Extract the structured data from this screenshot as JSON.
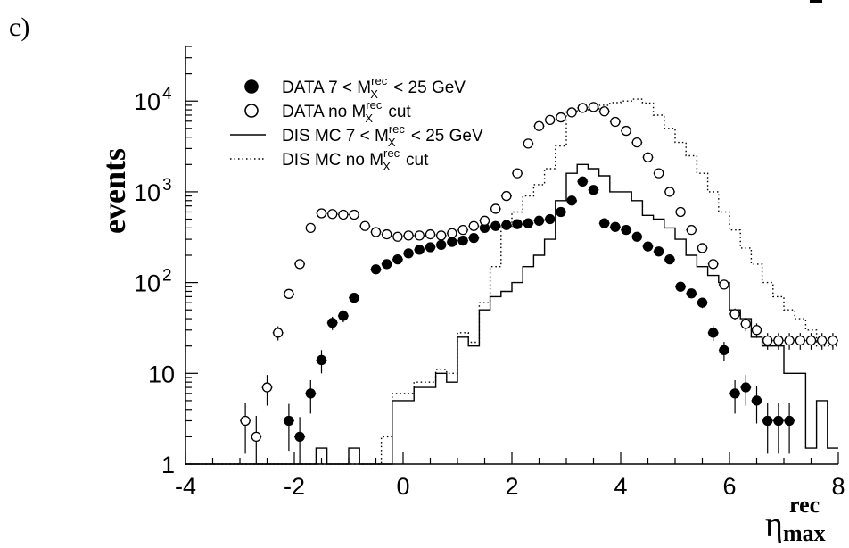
{
  "panel_label": "c)",
  "chart_data": {
    "type": "scatter",
    "xlabel": "η",
    "xlabel_sup": "rec",
    "xlabel_sub": "max",
    "ylabel": "events",
    "xlim": [
      -4,
      8
    ],
    "ylim": [
      1,
      40000
    ],
    "ylog": true,
    "x_ticks": [
      "-4",
      "-2",
      "0",
      "2",
      "4",
      "6",
      "8"
    ],
    "x_tick_values": [
      -4,
      -2,
      0,
      2,
      4,
      6,
      8
    ],
    "y_ticks": [
      {
        "value": 1,
        "base": "1",
        "exp": ""
      },
      {
        "value": 10,
        "base": "10",
        "exp": ""
      },
      {
        "value": 100,
        "base": "10",
        "exp": "2"
      },
      {
        "value": 1000,
        "base": "10",
        "exp": "3"
      },
      {
        "value": 10000,
        "base": "10",
        "exp": "4"
      }
    ],
    "legend_position": "top-left",
    "legend": [
      {
        "marker": "filled-circle",
        "pre": "DATA  7 < M",
        "sup": "rec",
        "sub": "X",
        "post": " < 25 GeV"
      },
      {
        "marker": "open-circle",
        "pre": "DATA no M",
        "sup": "rec",
        "sub": "X",
        "post": " cut"
      },
      {
        "marker": "solid-line",
        "pre": "DIS MC  7 < M",
        "sup": "rec",
        "sub": "X",
        "post": " < 25 GeV"
      },
      {
        "marker": "dotted-line",
        "pre": "DIS MC no M",
        "sup": "rec",
        "sub": "X",
        "post": " cut"
      }
    ],
    "series": [
      {
        "name": "DATA  7 < M_X^rec < 25 GeV",
        "marker": "filled-circle",
        "x": [
          -2.1,
          -1.9,
          -1.7,
          -1.5,
          -1.3,
          -1.1,
          -0.9,
          -0.5,
          -0.3,
          -0.1,
          0.1,
          0.3,
          0.5,
          0.7,
          0.9,
          1.1,
          1.3,
          1.5,
          1.7,
          1.9,
          2.1,
          2.3,
          2.5,
          2.7,
          2.9,
          3.1,
          3.3,
          3.5,
          3.7,
          3.9,
          4.1,
          4.3,
          4.5,
          4.7,
          4.9,
          5.1,
          5.3,
          5.5,
          5.7,
          5.9,
          6.1,
          6.3,
          6.5,
          6.7,
          6.9,
          7.1
        ],
        "y": [
          3,
          2,
          6,
          14,
          36,
          43,
          68,
          140,
          160,
          180,
          210,
          230,
          245,
          260,
          280,
          290,
          310,
          400,
          420,
          430,
          440,
          450,
          480,
          500,
          600,
          800,
          1300,
          1050,
          450,
          410,
          380,
          320,
          250,
          220,
          180,
          90,
          76,
          60,
          28,
          18,
          6,
          7,
          5,
          3,
          3,
          3
        ],
        "yerr": [
          1.6,
          1.3,
          2.4,
          4,
          6,
          6.5,
          8,
          12,
          13,
          13,
          15,
          15,
          16,
          16,
          17,
          17,
          18,
          20,
          20,
          21,
          21,
          21,
          22,
          22,
          25,
          28,
          36,
          32,
          21,
          20,
          19,
          18,
          16,
          15,
          13,
          9.5,
          8.7,
          7.7,
          5.3,
          4.2,
          2.4,
          2.6,
          2.2,
          1.7,
          1.7,
          1.7
        ]
      },
      {
        "name": "DATA no M_X^rec cut",
        "marker": "open-circle",
        "x": [
          -2.9,
          -2.7,
          -2.5,
          -2.3,
          -2.1,
          -1.9,
          -1.7,
          -1.5,
          -1.3,
          -1.1,
          -0.9,
          -0.7,
          -0.5,
          -0.3,
          -0.1,
          0.1,
          0.3,
          0.5,
          0.7,
          0.9,
          1.1,
          1.3,
          1.5,
          1.7,
          1.9,
          2.1,
          2.3,
          2.5,
          2.7,
          2.9,
          3.1,
          3.3,
          3.5,
          3.7,
          3.9,
          4.1,
          4.3,
          4.5,
          4.7,
          4.9,
          5.1,
          5.3,
          5.5,
          5.7,
          5.9,
          6.1,
          6.3,
          6.5,
          6.7,
          6.9,
          7.1,
          7.3,
          7.5,
          7.7,
          7.9
        ],
        "y": [
          3,
          2,
          7,
          28,
          75,
          160,
          400,
          580,
          570,
          560,
          560,
          420,
          360,
          340,
          320,
          330,
          330,
          340,
          330,
          350,
          380,
          420,
          480,
          650,
          900,
          1600,
          3400,
          5300,
          6200,
          6600,
          7500,
          8400,
          8600,
          7700,
          5900,
          4700,
          3500,
          2400,
          1600,
          1000,
          600,
          380,
          240,
          160,
          95,
          45,
          35,
          30,
          23,
          23,
          23,
          23,
          23,
          23,
          23
        ],
        "yerr": [
          1.7,
          1.4,
          2.6,
          5,
          8.7,
          12.6,
          20,
          24,
          24,
          24,
          24,
          20,
          19,
          18,
          18,
          18,
          18,
          18,
          18,
          19,
          19,
          20,
          22,
          25,
          30,
          40,
          58,
          73,
          79,
          81,
          87,
          92,
          93,
          88,
          77,
          69,
          59,
          49,
          40,
          32,
          24,
          19,
          15.5,
          12.6,
          9.7,
          6.7,
          5.9,
          5.5,
          4.8,
          4.8,
          4.8,
          4.8,
          4.8,
          4.8,
          4.8
        ]
      },
      {
        "name": "DIS MC  7 < M_X^rec < 25 GeV",
        "style": "solid-histogram",
        "bins": [
          -4,
          -3.8,
          -3.6,
          -3.4,
          -3.2,
          -3.0,
          -2.8,
          -2.6,
          -2.4,
          -2.2,
          -2.0,
          -1.8,
          -1.6,
          -1.4,
          -1.2,
          -1.0,
          -0.8,
          -0.6,
          -0.4,
          -0.2,
          0.0,
          0.2,
          0.4,
          0.6,
          0.8,
          1.0,
          1.2,
          1.4,
          1.6,
          1.8,
          2.0,
          2.2,
          2.4,
          2.6,
          2.8,
          3.0,
          3.2,
          3.4,
          3.6,
          3.8,
          4.0,
          4.2,
          4.4,
          4.6,
          4.8,
          5.0,
          5.2,
          5.4,
          5.6,
          5.8,
          6.0,
          6.2,
          6.4,
          6.6,
          6.8,
          7.0,
          7.2,
          7.4,
          7.6,
          7.8,
          8.0
        ],
        "values": [
          1,
          1,
          1,
          1,
          1,
          1,
          1,
          1,
          1,
          1,
          1,
          1,
          1.5,
          1,
          1,
          1.5,
          1,
          1,
          1,
          5,
          5,
          7,
          7,
          10,
          8,
          25,
          20,
          50,
          70,
          80,
          100,
          150,
          200,
          300,
          800,
          1600,
          2000,
          1800,
          1500,
          1000,
          1000,
          800,
          550,
          500,
          400,
          300,
          200,
          150,
          120,
          100,
          50,
          40,
          25,
          20,
          20,
          10,
          10,
          1.5,
          5,
          1.5
        ]
      },
      {
        "name": "DIS MC no M_X^rec cut",
        "style": "dotted-histogram",
        "bins": [
          -4,
          -3.8,
          -3.6,
          -3.4,
          -3.2,
          -3.0,
          -2.8,
          -2.6,
          -2.4,
          -2.2,
          -2.0,
          -1.8,
          -1.6,
          -1.4,
          -1.2,
          -1.0,
          -0.8,
          -0.6,
          -0.4,
          -0.2,
          0.0,
          0.2,
          0.4,
          0.6,
          0.8,
          1.0,
          1.2,
          1.4,
          1.6,
          1.8,
          2.0,
          2.2,
          2.4,
          2.6,
          2.8,
          3.0,
          3.2,
          3.4,
          3.6,
          3.8,
          4.0,
          4.2,
          4.4,
          4.6,
          4.8,
          5.0,
          5.2,
          5.4,
          5.6,
          5.8,
          6.0,
          6.2,
          6.4,
          6.6,
          6.8,
          7.0,
          7.2,
          7.4,
          7.6,
          7.8,
          8.0
        ],
        "values": [
          1,
          1,
          1,
          1,
          1,
          1,
          1,
          1,
          1,
          1,
          1,
          1,
          1,
          1,
          1,
          1,
          1,
          1,
          2,
          6,
          6,
          8,
          8,
          11,
          10,
          28,
          22,
          60,
          150,
          400,
          600,
          900,
          1200,
          1800,
          3200,
          7800,
          8000,
          8200,
          9000,
          9600,
          10000,
          10500,
          9500,
          7000,
          5000,
          3500,
          2500,
          1600,
          1000,
          600,
          380,
          240,
          160,
          100,
          70,
          50,
          40,
          30,
          20,
          20
        ]
      }
    ]
  }
}
